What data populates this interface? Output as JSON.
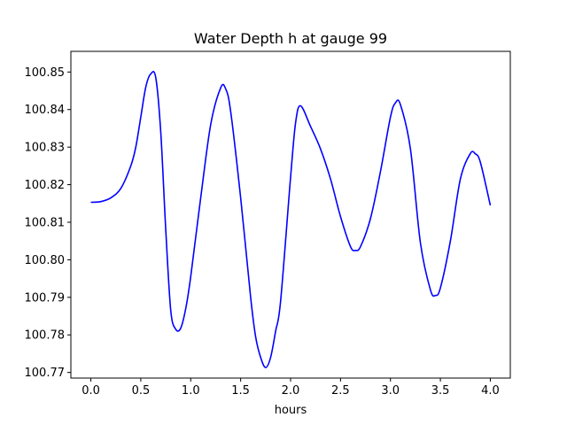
{
  "chart_data": {
    "type": "line",
    "title": "Water Depth h at gauge 99",
    "xlabel": "hours",
    "ylabel": "",
    "xlim": [
      -0.2,
      4.2
    ],
    "ylim": [
      100.7685,
      100.8555
    ],
    "grid": false,
    "legend": "none",
    "x_ticks": [
      0.0,
      0.5,
      1.0,
      1.5,
      2.0,
      2.5,
      3.0,
      3.5,
      4.0
    ],
    "x_tick_labels": [
      "0.0",
      "0.5",
      "1.0",
      "1.5",
      "2.0",
      "2.5",
      "3.0",
      "3.5",
      "4.0"
    ],
    "y_ticks": [
      100.77,
      100.78,
      100.79,
      100.8,
      100.81,
      100.82,
      100.83,
      100.84,
      100.85
    ],
    "y_tick_labels": [
      "100.77",
      "100.78",
      "100.79",
      "100.80",
      "100.81",
      "100.82",
      "100.83",
      "100.84",
      "100.85"
    ],
    "series": [
      {
        "color": "#0000ff",
        "x": [
          0.0,
          0.1,
          0.2,
          0.3,
          0.4,
          0.45,
          0.5,
          0.55,
          0.6,
          0.65,
          0.7,
          0.75,
          0.8,
          0.85,
          0.9,
          0.95,
          1.0,
          1.1,
          1.2,
          1.3,
          1.35,
          1.4,
          1.5,
          1.6,
          1.65,
          1.7,
          1.75,
          1.8,
          1.85,
          1.9,
          2.0,
          2.05,
          2.1,
          2.2,
          2.3,
          2.4,
          2.5,
          2.6,
          2.65,
          2.7,
          2.8,
          2.9,
          3.0,
          3.05,
          3.1,
          3.2,
          3.3,
          3.4,
          3.45,
          3.5,
          3.6,
          3.7,
          3.8,
          3.85,
          3.9,
          4.0
        ],
        "y": [
          100.8153,
          100.8155,
          100.8165,
          100.819,
          100.825,
          100.83,
          100.838,
          100.846,
          100.8495,
          100.8485,
          100.834,
          100.808,
          100.7865,
          100.7815,
          100.7818,
          100.787,
          100.7955,
          100.8165,
          100.836,
          100.8458,
          100.8455,
          100.8395,
          100.8165,
          100.79,
          100.7795,
          100.774,
          100.7713,
          100.774,
          100.781,
          100.789,
          100.822,
          100.8365,
          100.841,
          100.8355,
          100.8295,
          100.8215,
          100.8115,
          100.8035,
          100.8025,
          100.8035,
          100.811,
          100.8235,
          100.838,
          100.8418,
          100.8413,
          100.8295,
          100.8045,
          100.792,
          100.7905,
          100.7925,
          100.805,
          100.8215,
          100.8283,
          100.8282,
          100.826,
          100.8145
        ]
      }
    ]
  }
}
